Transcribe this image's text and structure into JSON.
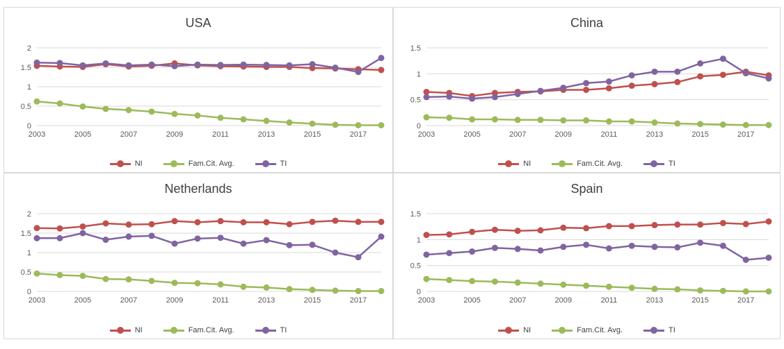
{
  "colors": {
    "NI": "#c0504d",
    "Fam.Cit. Avg.": "#9bbb59",
    "TI": "#8064a2",
    "grid": "#d9d9d9",
    "axis_text": "#595959"
  },
  "legend": [
    {
      "name": "NI",
      "color": "#c0504d"
    },
    {
      "name": "Fam.Cit. Avg.",
      "color": "#9bbb59"
    },
    {
      "name": "TI",
      "color": "#8064a2"
    }
  ],
  "chart_data": [
    {
      "type": "line",
      "title": "USA",
      "x": [
        2003,
        2004,
        2005,
        2006,
        2007,
        2008,
        2009,
        2010,
        2011,
        2012,
        2013,
        2014,
        2015,
        2016,
        2017,
        2018
      ],
      "x_tick_labels": [
        "2003",
        "2005",
        "2007",
        "2009",
        "2011",
        "2013",
        "2015",
        "2017"
      ],
      "ylim": [
        0,
        2
      ],
      "y_ticks": [
        0,
        0.5,
        1,
        1.5,
        2
      ],
      "y_tick_labels": [
        "0",
        "0.5",
        "1",
        "1.5",
        "2"
      ],
      "grid": true,
      "legend_position": "bottom",
      "series": [
        {
          "name": "NI",
          "values": [
            1.54,
            1.52,
            1.51,
            1.58,
            1.52,
            1.54,
            1.6,
            1.55,
            1.53,
            1.52,
            1.51,
            1.51,
            1.48,
            1.47,
            1.45,
            1.43
          ]
        },
        {
          "name": "Fam.Cit. Avg.",
          "values": [
            0.62,
            0.57,
            0.49,
            0.43,
            0.4,
            0.36,
            0.3,
            0.26,
            0.2,
            0.16,
            0.12,
            0.08,
            0.05,
            0.02,
            0.01,
            0.01
          ]
        },
        {
          "name": "TI",
          "values": [
            1.62,
            1.61,
            1.55,
            1.6,
            1.55,
            1.57,
            1.53,
            1.57,
            1.56,
            1.57,
            1.56,
            1.55,
            1.58,
            1.49,
            1.38,
            1.74
          ]
        }
      ]
    },
    {
      "type": "line",
      "title": "China",
      "x": [
        2003,
        2004,
        2005,
        2006,
        2007,
        2008,
        2009,
        2010,
        2011,
        2012,
        2013,
        2014,
        2015,
        2016,
        2017,
        2018
      ],
      "x_tick_labels": [
        "2003",
        "2005",
        "2007",
        "2009",
        "2011",
        "2013",
        "2015",
        "2017"
      ],
      "ylim": [
        0,
        1.5
      ],
      "y_ticks": [
        0,
        0.5,
        1,
        1.5
      ],
      "y_tick_labels": [
        "0",
        "0.5",
        "1",
        "1.5"
      ],
      "grid": true,
      "legend_position": "bottom",
      "series": [
        {
          "name": "NI",
          "values": [
            0.65,
            0.63,
            0.57,
            0.63,
            0.65,
            0.66,
            0.69,
            0.69,
            0.72,
            0.77,
            0.8,
            0.84,
            0.95,
            0.98,
            1.04,
            0.97
          ]
        },
        {
          "name": "Fam.Cit. Avg.",
          "values": [
            0.16,
            0.15,
            0.12,
            0.12,
            0.11,
            0.11,
            0.1,
            0.1,
            0.08,
            0.08,
            0.06,
            0.04,
            0.03,
            0.02,
            0.01,
            0.01
          ]
        },
        {
          "name": "TI",
          "values": [
            0.55,
            0.56,
            0.52,
            0.55,
            0.61,
            0.67,
            0.73,
            0.82,
            0.85,
            0.97,
            1.04,
            1.04,
            1.2,
            1.29,
            1.01,
            0.91
          ]
        }
      ]
    },
    {
      "type": "line",
      "title": "Netherlands",
      "x": [
        2003,
        2004,
        2005,
        2006,
        2007,
        2008,
        2009,
        2010,
        2011,
        2012,
        2013,
        2014,
        2015,
        2016,
        2017,
        2018
      ],
      "x_tick_labels": [
        "2003",
        "2005",
        "2007",
        "2009",
        "2011",
        "2013",
        "2015",
        "2017"
      ],
      "ylim": [
        0,
        2
      ],
      "y_ticks": [
        0,
        0.5,
        1,
        1.5,
        2
      ],
      "y_tick_labels": [
        "0",
        "0.5",
        "1",
        "1.5",
        "2"
      ],
      "grid": true,
      "legend_position": "bottom",
      "series": [
        {
          "name": "NI",
          "values": [
            1.63,
            1.62,
            1.67,
            1.75,
            1.72,
            1.73,
            1.81,
            1.78,
            1.81,
            1.78,
            1.78,
            1.73,
            1.79,
            1.82,
            1.79,
            1.79
          ]
        },
        {
          "name": "Fam.Cit. Avg.",
          "values": [
            0.46,
            0.42,
            0.4,
            0.32,
            0.31,
            0.27,
            0.22,
            0.21,
            0.18,
            0.12,
            0.1,
            0.06,
            0.04,
            0.02,
            0.01,
            0.01
          ]
        },
        {
          "name": "TI",
          "values": [
            1.37,
            1.37,
            1.5,
            1.33,
            1.41,
            1.43,
            1.23,
            1.36,
            1.38,
            1.23,
            1.32,
            1.19,
            1.2,
            1.0,
            0.88,
            1.41
          ]
        }
      ]
    },
    {
      "type": "line",
      "title": "Spain",
      "x": [
        2003,
        2004,
        2005,
        2006,
        2007,
        2008,
        2009,
        2010,
        2011,
        2012,
        2013,
        2014,
        2015,
        2016,
        2017,
        2018
      ],
      "x_tick_labels": [
        "2003",
        "2005",
        "2007",
        "2009",
        "2011",
        "2013",
        "2015",
        "2017"
      ],
      "ylim": [
        0,
        1.5
      ],
      "y_ticks": [
        0,
        0.5,
        1,
        1.5
      ],
      "y_tick_labels": [
        "0",
        "0.5",
        "1",
        "1.5"
      ],
      "grid": true,
      "legend_position": "bottom",
      "series": [
        {
          "name": "NI",
          "values": [
            1.09,
            1.1,
            1.15,
            1.19,
            1.17,
            1.18,
            1.23,
            1.22,
            1.26,
            1.26,
            1.28,
            1.29,
            1.29,
            1.32,
            1.3,
            1.35
          ]
        },
        {
          "name": "Fam.Cit. Avg.",
          "values": [
            0.24,
            0.22,
            0.2,
            0.19,
            0.17,
            0.15,
            0.13,
            0.11,
            0.09,
            0.07,
            0.05,
            0.04,
            0.02,
            0.01,
            0.0,
            0.0
          ]
        },
        {
          "name": "TI",
          "values": [
            0.71,
            0.74,
            0.77,
            0.84,
            0.82,
            0.79,
            0.86,
            0.9,
            0.83,
            0.88,
            0.86,
            0.85,
            0.94,
            0.88,
            0.61,
            0.65
          ]
        }
      ]
    }
  ]
}
